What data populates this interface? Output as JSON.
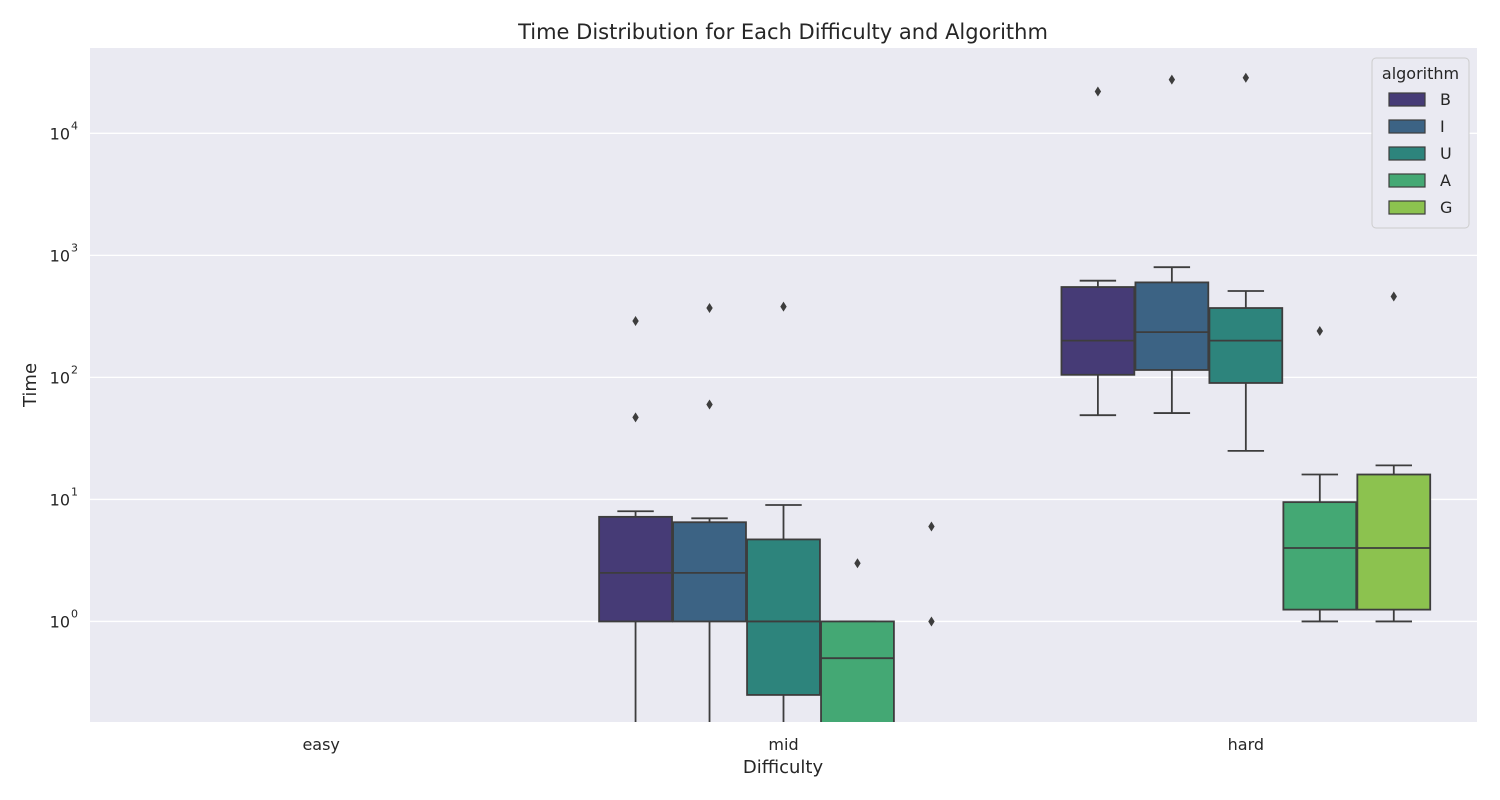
{
  "chart_data": {
    "type": "box",
    "title": "Time Distribution for Each Difficulty and Algorithm",
    "xlabel": "Difficulty",
    "ylabel": "Time",
    "yscale": "log",
    "ylim": [
      0.15,
      50000
    ],
    "grid": true,
    "categories": [
      "easy",
      "mid",
      "hard"
    ],
    "y_ticks": [
      {
        "base": "10",
        "exp": "0",
        "value": 1
      },
      {
        "base": "10",
        "exp": "1",
        "value": 10
      },
      {
        "base": "10",
        "exp": "2",
        "value": 100
      },
      {
        "base": "10",
        "exp": "3",
        "value": 1000
      },
      {
        "base": "10",
        "exp": "4",
        "value": 10000
      }
    ],
    "legend": {
      "title": "algorithm",
      "position": "top-right"
    },
    "series": [
      {
        "name": "B",
        "color": "#463b76",
        "boxes": [
          null,
          {
            "whislo": 0.05,
            "q1": 1.0,
            "med": 2.5,
            "q3": 7.2,
            "whishi": 8.0,
            "fliers": [
              47,
              290
            ]
          },
          {
            "whislo": 49,
            "q1": 105,
            "med": 200,
            "q3": 550,
            "whishi": 620,
            "fliers": [
              22000
            ]
          }
        ]
      },
      {
        "name": "I",
        "color": "#3c6384",
        "boxes": [
          null,
          {
            "whislo": 0.05,
            "q1": 1.0,
            "med": 2.5,
            "q3": 6.5,
            "whishi": 7.0,
            "fliers": [
              60,
              370
            ]
          },
          {
            "whislo": 51,
            "q1": 115,
            "med": 235,
            "q3": 600,
            "whishi": 800,
            "fliers": [
              27500
            ]
          }
        ]
      },
      {
        "name": "U",
        "color": "#2d847c",
        "boxes": [
          null,
          {
            "whislo": 0.05,
            "q1": 0.25,
            "med": 1.0,
            "q3": 4.7,
            "whishi": 9.0,
            "fliers": [
              380
            ]
          },
          {
            "whislo": 25,
            "q1": 90,
            "med": 200,
            "q3": 370,
            "whishi": 510,
            "fliers": [
              28500
            ]
          }
        ]
      },
      {
        "name": "A",
        "color": "#44a874",
        "boxes": [
          null,
          {
            "whislo": 0.05,
            "q1": 0.1,
            "med": 0.5,
            "q3": 1.0,
            "whishi": 1.0,
            "fliers": [
              3.0
            ]
          },
          {
            "whislo": 1.0,
            "q1": 1.25,
            "med": 4.0,
            "q3": 9.5,
            "whishi": 16,
            "fliers": [
              240
            ]
          }
        ]
      },
      {
        "name": "G",
        "color": "#8cc24f",
        "boxes": [
          null,
          {
            "whislo": null,
            "q1": null,
            "med": null,
            "q3": null,
            "whishi": null,
            "fliers": [
              1.0,
              6.0
            ]
          },
          {
            "whislo": 1.0,
            "q1": 1.25,
            "med": 4.0,
            "q3": 16,
            "whishi": 19,
            "fliers": [
              460
            ]
          }
        ]
      }
    ]
  }
}
